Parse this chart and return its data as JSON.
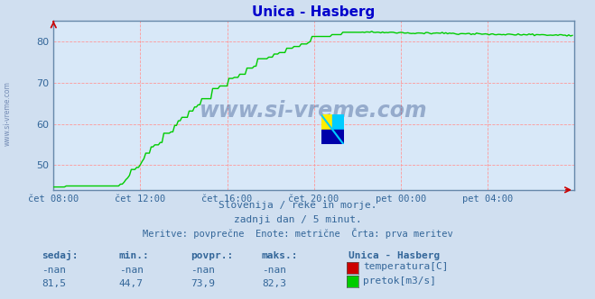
{
  "title": "Unica - Hasberg",
  "title_color": "#0000cc",
  "bg_color": "#d0dff0",
  "plot_bg_color": "#d8e8f8",
  "grid_color_major": "#ff9999",
  "grid_color_minor": "#ffcccc",
  "axis_color": "#6688aa",
  "arrow_color": "#cc0000",
  "tick_color": "#336699",
  "watermark_text": "www.si-vreme.com",
  "watermark_color": "#1a3a7a",
  "watermark_alpha": 0.35,
  "watermark_side": "www.si-vreme.com",
  "subtitle1": "Slovenija / reke in morje.",
  "subtitle2": "zadnji dan / 5 minut.",
  "subtitle3": "Meritve: povprečne  Enote: metrične  Črta: prva meritev",
  "subtitle_color": "#336699",
  "xtick_labels": [
    "čet 08:00",
    "čet 12:00",
    "čet 16:00",
    "čet 20:00",
    "pet 00:00",
    "pet 04:00"
  ],
  "xtick_positions": [
    0,
    48,
    96,
    144,
    192,
    240
  ],
  "ytick_labels": [
    "50",
    "60",
    "70",
    "80"
  ],
  "ytick_positions": [
    50,
    60,
    70,
    80
  ],
  "ylim": [
    44,
    85
  ],
  "xlim": [
    0,
    288
  ],
  "flow_color": "#00cc00",
  "temp_color": "#cc0000",
  "footer_col_labels": [
    "sedaj:",
    "min.:",
    "povpr.:",
    "maks.:"
  ],
  "footer_values_row1": [
    "-nan",
    "-nan",
    "-nan",
    "-nan"
  ],
  "footer_values_row2": [
    "81,5",
    "44,7",
    "73,9",
    "82,3"
  ],
  "footer_station": "Unica - Hasberg",
  "footer_legend1_label": "temperatura[C]",
  "footer_legend2_label": "pretok[m3/s]",
  "footer_color": "#336699",
  "logo_yellow": "#ffee00",
  "logo_cyan": "#00ccff",
  "logo_blue": "#0000aa"
}
